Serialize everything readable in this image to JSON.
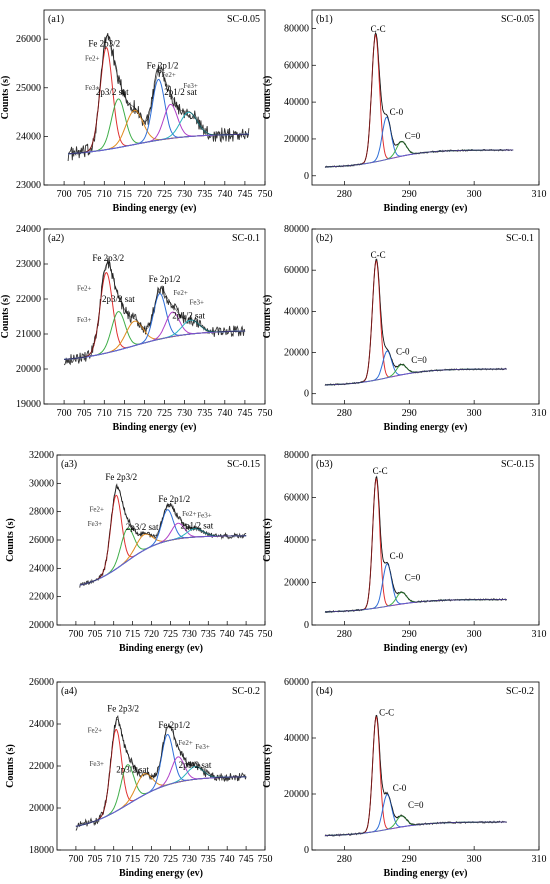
{
  "figure": {
    "panels": [
      {
        "id": "a1",
        "panel_label": "(a1)",
        "sample": "SC-0.05",
        "xlabel": "Binding energy (ev)",
        "ylabel": "Counts (s)",
        "xlim": [
          695,
          750
        ],
        "ylim": [
          23000,
          26600
        ],
        "xticks": [
          "700",
          "705",
          "710",
          "715",
          "720",
          "725",
          "730",
          "735",
          "740",
          "745",
          "750"
        ],
        "yticks": [
          "23000",
          "24000",
          "25000",
          "26000"
        ],
        "annotations": [
          {
            "text": "Fe 2p3/2",
            "size": "main"
          },
          {
            "text": "Fe 2p1/2",
            "size": "main"
          },
          {
            "text": "2p3/2 sat",
            "size": "main"
          },
          {
            "text": "2p1/2 sat",
            "size": "main"
          },
          {
            "text": "Fe2+",
            "size": "small"
          },
          {
            "text": "Fe3+",
            "size": "small"
          },
          {
            "text": "Fe2+",
            "size": "small"
          },
          {
            "text": "Fe3+",
            "size": "small"
          }
        ]
      },
      {
        "id": "b1",
        "panel_label": "(b1)",
        "sample": "SC-0.05",
        "xlabel": "Binding energy (ev)",
        "ylabel": "Counts (s)",
        "xlim": [
          275,
          310
        ],
        "ylim": [
          -5000,
          90000
        ],
        "xticks": [
          "280",
          "290",
          "300",
          "310"
        ],
        "yticks": [
          "0",
          "20000",
          "40000",
          "60000",
          "80000"
        ],
        "annotations": [
          {
            "text": "C-C"
          },
          {
            "text": "C-0"
          },
          {
            "text": "C=0"
          }
        ]
      },
      {
        "id": "a2",
        "panel_label": "(a2)",
        "sample": "SC-0.1",
        "xlabel": "Binding energy (ev)",
        "ylabel": "Counts (s)",
        "xlim": [
          695,
          750
        ],
        "ylim": [
          19000,
          24000
        ],
        "xticks": [
          "700",
          "705",
          "710",
          "715",
          "720",
          "725",
          "730",
          "735",
          "740",
          "745",
          "750"
        ],
        "yticks": [
          "19000",
          "20000",
          "21000",
          "22000",
          "23000",
          "24000"
        ],
        "annotations": [
          {
            "text": "Fe 2p3/2",
            "size": "main"
          },
          {
            "text": "Fe 2p1/2",
            "size": "main"
          },
          {
            "text": "2p3/2 sat",
            "size": "main"
          },
          {
            "text": "2p1/2 sat",
            "size": "main"
          },
          {
            "text": "Fe2+",
            "size": "small"
          },
          {
            "text": "Fe3+",
            "size": "small"
          },
          {
            "text": "Fe2+",
            "size": "small"
          },
          {
            "text": "Fe3+",
            "size": "small"
          }
        ]
      },
      {
        "id": "b2",
        "panel_label": "(b2)",
        "sample": "SC-0.1",
        "xlabel": "Binding energy (ev)",
        "ylabel": "Counts (s)",
        "xlim": [
          275,
          310
        ],
        "ylim": [
          -5000,
          80000
        ],
        "xticks": [
          "280",
          "290",
          "300",
          "310"
        ],
        "yticks": [
          "0",
          "20000",
          "40000",
          "60000",
          "80000"
        ],
        "annotations": [
          {
            "text": "C-C"
          },
          {
            "text": "C-0"
          },
          {
            "text": "C=0"
          }
        ]
      },
      {
        "id": "a3",
        "panel_label": "(a3)",
        "sample": "SC-0.15",
        "xlabel": "Binding energy (ev)",
        "ylabel": "Counts (s)",
        "xlim": [
          695,
          750
        ],
        "ylim": [
          20000,
          32000
        ],
        "xticks": [
          "700",
          "705",
          "710",
          "715",
          "720",
          "725",
          "730",
          "735",
          "740",
          "745",
          "750"
        ],
        "yticks": [
          "20000",
          "22000",
          "24000",
          "26000",
          "28000",
          "30000",
          "32000"
        ],
        "annotations": [
          {
            "text": "Fe 2p3/2",
            "size": "main"
          },
          {
            "text": "Fe 2p1/2",
            "size": "main"
          },
          {
            "text": "2p3/2 sat",
            "size": "main"
          },
          {
            "text": "2p1/2 sat",
            "size": "main"
          },
          {
            "text": "Fe2+",
            "size": "small"
          },
          {
            "text": "Fe3+",
            "size": "small"
          },
          {
            "text": "Fe2+",
            "size": "small"
          },
          {
            "text": "Fe3+",
            "size": "small"
          }
        ]
      },
      {
        "id": "b3",
        "panel_label": "(b3)",
        "sample": "SC-0.15",
        "xlabel": "Binding energy (ev)",
        "ylabel": "Counts (s)",
        "xlim": [
          275,
          310
        ],
        "ylim": [
          0,
          80000
        ],
        "xticks": [
          "280",
          "290",
          "300",
          "310"
        ],
        "yticks": [
          "0",
          "20000",
          "40000",
          "60000",
          "80000"
        ],
        "annotations": [
          {
            "text": "C-C"
          },
          {
            "text": "C-0"
          },
          {
            "text": "C=0"
          }
        ]
      },
      {
        "id": "a4",
        "panel_label": "(a4)",
        "sample": "SC-0.2",
        "xlabel": "Binding energy (ev)",
        "ylabel": "Counts (s)",
        "xlim": [
          695,
          750
        ],
        "ylim": [
          18000,
          26000
        ],
        "xticks": [
          "700",
          "705",
          "710",
          "715",
          "720",
          "725",
          "730",
          "735",
          "740",
          "745",
          "750"
        ],
        "yticks": [
          "18000",
          "20000",
          "22000",
          "24000",
          "26000"
        ],
        "annotations": [
          {
            "text": "Fe 2p3/2",
            "size": "main"
          },
          {
            "text": "Fe 2p1/2",
            "size": "main"
          },
          {
            "text": "2p3/2 sat",
            "size": "main"
          },
          {
            "text": "2p1/2 sat",
            "size": "main"
          },
          {
            "text": "Fe2+",
            "size": "small"
          },
          {
            "text": "Fe3+",
            "size": "small"
          },
          {
            "text": "Fe2+",
            "size": "small"
          },
          {
            "text": "Fe3+",
            "size": "small"
          }
        ]
      },
      {
        "id": "b4",
        "panel_label": "(b4)",
        "sample": "SC-0.2",
        "xlabel": "Binding energy (ev)",
        "ylabel": "Counts (s)",
        "xlim": [
          275,
          310
        ],
        "ylim": [
          0,
          60000
        ],
        "xticks": [
          "280",
          "290",
          "300",
          "310"
        ],
        "yticks": [
          "0",
          "20000",
          "40000",
          "60000"
        ],
        "annotations": [
          {
            "text": "C-C"
          },
          {
            "text": "C-0"
          },
          {
            "text": "C=0"
          }
        ]
      }
    ]
  },
  "colors": {
    "data": "#333333",
    "envelope": "#000000",
    "background": "#6a5acd",
    "fe_red": "#e03030",
    "fe_green": "#3fae49",
    "fe_orange": "#e08a1e",
    "fe_yellow": "#d7c84a",
    "fe_blue": "#2f6fd8",
    "fe_purple": "#b040c8",
    "fe_cyan": "#2ab3c0",
    "c_red": "#e03030",
    "c_blue": "#2f6fd8",
    "c_green": "#3fae49",
    "c_bg": "#b040c8"
  },
  "chart_data": [
    {
      "id": "a1",
      "type": "line",
      "title": "SC-0.05",
      "xlabel": "Binding energy (ev)",
      "ylabel": "Counts (s)",
      "xlim": [
        695,
        750
      ],
      "ylim": [
        23000,
        26600
      ],
      "grid": false,
      "x_range": [
        701,
        746
      ],
      "background": {
        "start": 23600,
        "end": 24050,
        "xc": 717,
        "w": 7
      },
      "peaks": [
        {
          "name": "Fe2+",
          "center": 710.5,
          "height": 2100,
          "fwhm": 3.6,
          "color": "fe_red"
        },
        {
          "name": "Fe3+",
          "center": 713.5,
          "height": 1000,
          "fwhm": 4.0,
          "color": "fe_green"
        },
        {
          "name": "2p3/2 sat",
          "center": 717.5,
          "height": 700,
          "fwhm": 5.0,
          "color": "fe_orange"
        },
        {
          "name": "Fe 2p1/2",
          "center": 723.5,
          "height": 1250,
          "fwhm": 3.6,
          "color": "fe_blue"
        },
        {
          "name": "Fe2+",
          "center": 726.5,
          "height": 700,
          "fwhm": 4.0,
          "color": "fe_purple"
        },
        {
          "name": "2p1/2 sat",
          "center": 731.0,
          "height": 500,
          "fwhm": 5.0,
          "color": "fe_cyan"
        }
      ],
      "noise": 150
    },
    {
      "id": "b1",
      "type": "line",
      "title": "SC-0.05",
      "xlabel": "Binding energy (ev)",
      "ylabel": "Counts (s)",
      "xlim": [
        275,
        310
      ],
      "ylim": [
        -5000,
        90000
      ],
      "grid": false,
      "x_range": [
        277,
        306
      ],
      "background": {
        "start": 4500,
        "end": 14000,
        "xc": 287,
        "w": 3,
        "slope": true
      },
      "peaks": [
        {
          "name": "C-C",
          "center": 284.8,
          "height": 69000,
          "fwhm": 1.4,
          "color": "c_red"
        },
        {
          "name": "C-0",
          "center": 286.5,
          "height": 23000,
          "fwhm": 1.6,
          "color": "c_blue"
        },
        {
          "name": "C=0",
          "center": 288.8,
          "height": 8000,
          "fwhm": 1.8,
          "color": "c_green"
        }
      ],
      "noise": 400
    },
    {
      "id": "a2",
      "type": "line",
      "title": "SC-0.1",
      "xlabel": "Binding energy (ev)",
      "ylabel": "Counts (s)",
      "xlim": [
        695,
        750
      ],
      "ylim": [
        19000,
        24000
      ],
      "grid": false,
      "x_range": [
        700,
        745
      ],
      "background": {
        "start": 20200,
        "end": 21100,
        "xc": 717,
        "w": 7
      },
      "peaks": [
        {
          "name": "Fe2+",
          "center": 710.5,
          "height": 2300,
          "fwhm": 3.6,
          "color": "fe_red"
        },
        {
          "name": "Fe3+",
          "center": 713.5,
          "height": 1100,
          "fwhm": 4.0,
          "color": "fe_green"
        },
        {
          "name": "2p3/2 sat",
          "center": 717.5,
          "height": 700,
          "fwhm": 5.0,
          "color": "fe_orange"
        },
        {
          "name": "Fe 2p1/2",
          "center": 723.8,
          "height": 1300,
          "fwhm": 3.6,
          "color": "fe_blue"
        },
        {
          "name": "Fe2+",
          "center": 727.0,
          "height": 700,
          "fwhm": 4.0,
          "color": "fe_purple"
        },
        {
          "name": "2p1/2 sat",
          "center": 731.5,
          "height": 400,
          "fwhm": 5.0,
          "color": "fe_cyan"
        }
      ],
      "noise": 160
    },
    {
      "id": "b2",
      "type": "line",
      "title": "SC-0.1",
      "xlabel": "Binding energy (ev)",
      "ylabel": "Counts (s)",
      "xlim": [
        275,
        310
      ],
      "ylim": [
        -5000,
        80000
      ],
      "grid": false,
      "x_range": [
        277,
        305
      ],
      "background": {
        "start": 4000,
        "end": 12000,
        "xc": 287,
        "w": 3,
        "slope": true
      },
      "peaks": [
        {
          "name": "C-C",
          "center": 284.9,
          "height": 58000,
          "fwhm": 1.4,
          "color": "c_red"
        },
        {
          "name": "C-0",
          "center": 286.6,
          "height": 13000,
          "fwhm": 1.6,
          "color": "c_blue"
        },
        {
          "name": "C=0",
          "center": 288.8,
          "height": 5000,
          "fwhm": 1.8,
          "color": "c_green"
        }
      ],
      "noise": 350
    },
    {
      "id": "a3",
      "type": "line",
      "title": "SC-0.15",
      "xlabel": "Binding energy (ev)",
      "ylabel": "Counts (s)",
      "xlim": [
        695,
        750
      ],
      "ylim": [
        20000,
        32000
      ],
      "grid": false,
      "x_range": [
        701,
        745
      ],
      "background": {
        "start": 22500,
        "end": 26300,
        "xc": 713,
        "w": 5
      },
      "peaks": [
        {
          "name": "Fe2+",
          "center": 710.6,
          "height": 5200,
          "fwhm": 3.4,
          "color": "fe_red"
        },
        {
          "name": "Fe3+",
          "center": 713.6,
          "height": 2300,
          "fwhm": 4.0,
          "color": "fe_green"
        },
        {
          "name": "2p3/2 sat",
          "center": 718.0,
          "height": 1100,
          "fwhm": 5.0,
          "color": "fe_orange"
        },
        {
          "name": "Fe 2p1/2",
          "center": 724.2,
          "height": 2200,
          "fwhm": 3.6,
          "color": "fe_blue"
        },
        {
          "name": "Fe2+",
          "center": 727.0,
          "height": 1100,
          "fwhm": 4.0,
          "color": "fe_purple"
        },
        {
          "name": "2p1/2 sat",
          "center": 731.5,
          "height": 600,
          "fwhm": 5.0,
          "color": "fe_cyan"
        }
      ],
      "noise": 180
    },
    {
      "id": "b3",
      "type": "line",
      "title": "SC-0.15",
      "xlabel": "Binding energy (ev)",
      "ylabel": "Counts (s)",
      "xlim": [
        275,
        310
      ],
      "ylim": [
        0,
        80000
      ],
      "grid": false,
      "x_range": [
        277,
        305
      ],
      "background": {
        "start": 6000,
        "end": 12000,
        "xc": 287,
        "w": 3,
        "slope": true
      },
      "peaks": [
        {
          "name": "C-C",
          "center": 284.9,
          "height": 61000,
          "fwhm": 1.3,
          "color": "c_red"
        },
        {
          "name": "C-0",
          "center": 286.6,
          "height": 20000,
          "fwhm": 1.6,
          "color": "c_blue"
        },
        {
          "name": "C=0",
          "center": 288.8,
          "height": 5500,
          "fwhm": 1.8,
          "color": "c_green"
        }
      ],
      "noise": 380
    },
    {
      "id": "a4",
      "type": "line",
      "title": "SC-0.2",
      "xlabel": "Binding energy (ev)",
      "ylabel": "Counts (s)",
      "xlim": [
        695,
        750
      ],
      "ylim": [
        18000,
        26000
      ],
      "grid": false,
      "x_range": [
        700,
        745
      ],
      "background": {
        "start": 18900,
        "end": 21500,
        "xc": 714,
        "w": 6
      },
      "peaks": [
        {
          "name": "Fe2+",
          "center": 710.6,
          "height": 3900,
          "fwhm": 3.4,
          "color": "fe_red"
        },
        {
          "name": "Fe3+",
          "center": 713.6,
          "height": 1900,
          "fwhm": 4.0,
          "color": "fe_green"
        },
        {
          "name": "2p3/2 sat",
          "center": 718.0,
          "height": 1000,
          "fwhm": 5.0,
          "color": "fe_orange"
        },
        {
          "name": "Fe 2p1/2",
          "center": 724.2,
          "height": 2400,
          "fwhm": 3.6,
          "color": "fe_blue"
        },
        {
          "name": "Fe2+",
          "center": 727.0,
          "height": 1200,
          "fwhm": 4.0,
          "color": "fe_purple"
        },
        {
          "name": "2p1/2 sat",
          "center": 731.5,
          "height": 600,
          "fwhm": 5.0,
          "color": "fe_cyan"
        }
      ],
      "noise": 200
    },
    {
      "id": "b4",
      "type": "line",
      "title": "SC-0.2",
      "xlabel": "Binding energy (ev)",
      "ylabel": "Counts (s)",
      "xlim": [
        275,
        310
      ],
      "ylim": [
        0,
        60000
      ],
      "grid": false,
      "x_range": [
        277,
        305
      ],
      "background": {
        "start": 5000,
        "end": 10000,
        "xc": 287,
        "w": 3,
        "slope": true
      },
      "peaks": [
        {
          "name": "C-C",
          "center": 284.9,
          "height": 41000,
          "fwhm": 1.3,
          "color": "c_red"
        },
        {
          "name": "C-0",
          "center": 286.6,
          "height": 12500,
          "fwhm": 1.6,
          "color": "c_blue"
        },
        {
          "name": "C=0",
          "center": 288.8,
          "height": 4000,
          "fwhm": 1.8,
          "color": "c_green"
        }
      ],
      "noise": 300
    }
  ]
}
